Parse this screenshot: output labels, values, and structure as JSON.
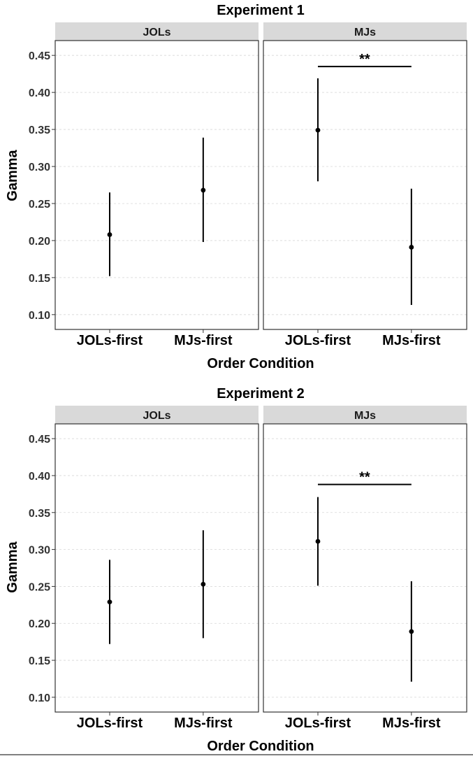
{
  "chart_data": [
    {
      "type": "scatter",
      "title": "Experiment 1",
      "xlabel": "Order Condition",
      "ylabel": "Gamma",
      "ylim": [
        0.08,
        0.47
      ],
      "yticks": [
        "0.10",
        "0.15",
        "0.20",
        "0.25",
        "0.30",
        "0.35",
        "0.40",
        "0.45"
      ],
      "categories": [
        "JOLs-first",
        "MJs-first"
      ],
      "grid": true,
      "panels": [
        {
          "label": "JOLs",
          "points": [
            {
              "x": "JOLs-first",
              "y": 0.208,
              "lower": 0.152,
              "upper": 0.265
            },
            {
              "x": "MJs-first",
              "y": 0.268,
              "lower": 0.198,
              "upper": 0.339
            }
          ],
          "significance": null
        },
        {
          "label": "MJs",
          "points": [
            {
              "x": "JOLs-first",
              "y": 0.349,
              "lower": 0.28,
              "upper": 0.419
            },
            {
              "x": "MJs-first",
              "y": 0.191,
              "lower": 0.113,
              "upper": 0.27
            }
          ],
          "significance": {
            "label": "**",
            "y": 0.435
          }
        }
      ]
    },
    {
      "type": "scatter",
      "title": "Experiment 2",
      "xlabel": "Order Condition",
      "ylabel": "Gamma",
      "ylim": [
        0.08,
        0.47
      ],
      "yticks": [
        "0.10",
        "0.15",
        "0.20",
        "0.25",
        "0.30",
        "0.35",
        "0.40",
        "0.45"
      ],
      "categories": [
        "JOLs-first",
        "MJs-first"
      ],
      "grid": true,
      "panels": [
        {
          "label": "JOLs",
          "points": [
            {
              "x": "JOLs-first",
              "y": 0.229,
              "lower": 0.172,
              "upper": 0.286
            },
            {
              "x": "MJs-first",
              "y": 0.253,
              "lower": 0.18,
              "upper": 0.326
            }
          ],
          "significance": null
        },
        {
          "label": "MJs",
          "points": [
            {
              "x": "JOLs-first",
              "y": 0.311,
              "lower": 0.251,
              "upper": 0.371
            },
            {
              "x": "MJs-first",
              "y": 0.189,
              "lower": 0.121,
              "upper": 0.257
            }
          ],
          "significance": {
            "label": "**",
            "y": 0.388
          }
        }
      ]
    }
  ]
}
